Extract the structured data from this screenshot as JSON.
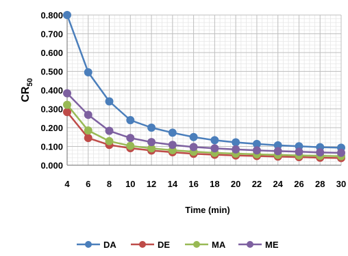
{
  "chart_data": {
    "type": "line",
    "title": "",
    "xlabel": "Time (min)",
    "ylabel": "CR",
    "ylabel_sub": "50",
    "x": [
      4,
      6,
      8,
      10,
      12,
      14,
      16,
      18,
      20,
      22,
      24,
      26,
      28,
      30
    ],
    "xlim": [
      4,
      30
    ],
    "ylim": [
      0,
      0.8
    ],
    "x_ticks": [
      "4",
      "6",
      "8",
      "10",
      "12",
      "14",
      "16",
      "18",
      "20",
      "22",
      "24",
      "26",
      "28",
      "30"
    ],
    "y_ticks": [
      "0.000",
      "0.100",
      "0.200",
      "0.300",
      "0.400",
      "0.500",
      "0.600",
      "0.700",
      "0.800"
    ],
    "grid": true,
    "legend_position": "bottom",
    "series": [
      {
        "name": "DA",
        "color": "#4A7EBB",
        "values": [
          0.8,
          0.495,
          0.34,
          0.24,
          0.2,
          0.173,
          0.15,
          0.133,
          0.122,
          0.113,
          0.106,
          0.101,
          0.096,
          0.093
        ]
      },
      {
        "name": "DE",
        "color": "#BE4B48",
        "values": [
          0.283,
          0.145,
          0.108,
          0.091,
          0.078,
          0.069,
          0.061,
          0.056,
          0.052,
          0.049,
          0.046,
          0.043,
          0.04,
          0.038
        ]
      },
      {
        "name": "MA",
        "color": "#98B954",
        "values": [
          0.322,
          0.185,
          0.128,
          0.103,
          0.09,
          0.08,
          0.072,
          0.066,
          0.062,
          0.058,
          0.055,
          0.052,
          0.05,
          0.048
        ]
      },
      {
        "name": "ME",
        "color": "#7D60A0",
        "values": [
          0.383,
          0.268,
          0.183,
          0.145,
          0.123,
          0.108,
          0.097,
          0.09,
          0.084,
          0.079,
          0.075,
          0.072,
          0.068,
          0.066
        ]
      }
    ]
  }
}
